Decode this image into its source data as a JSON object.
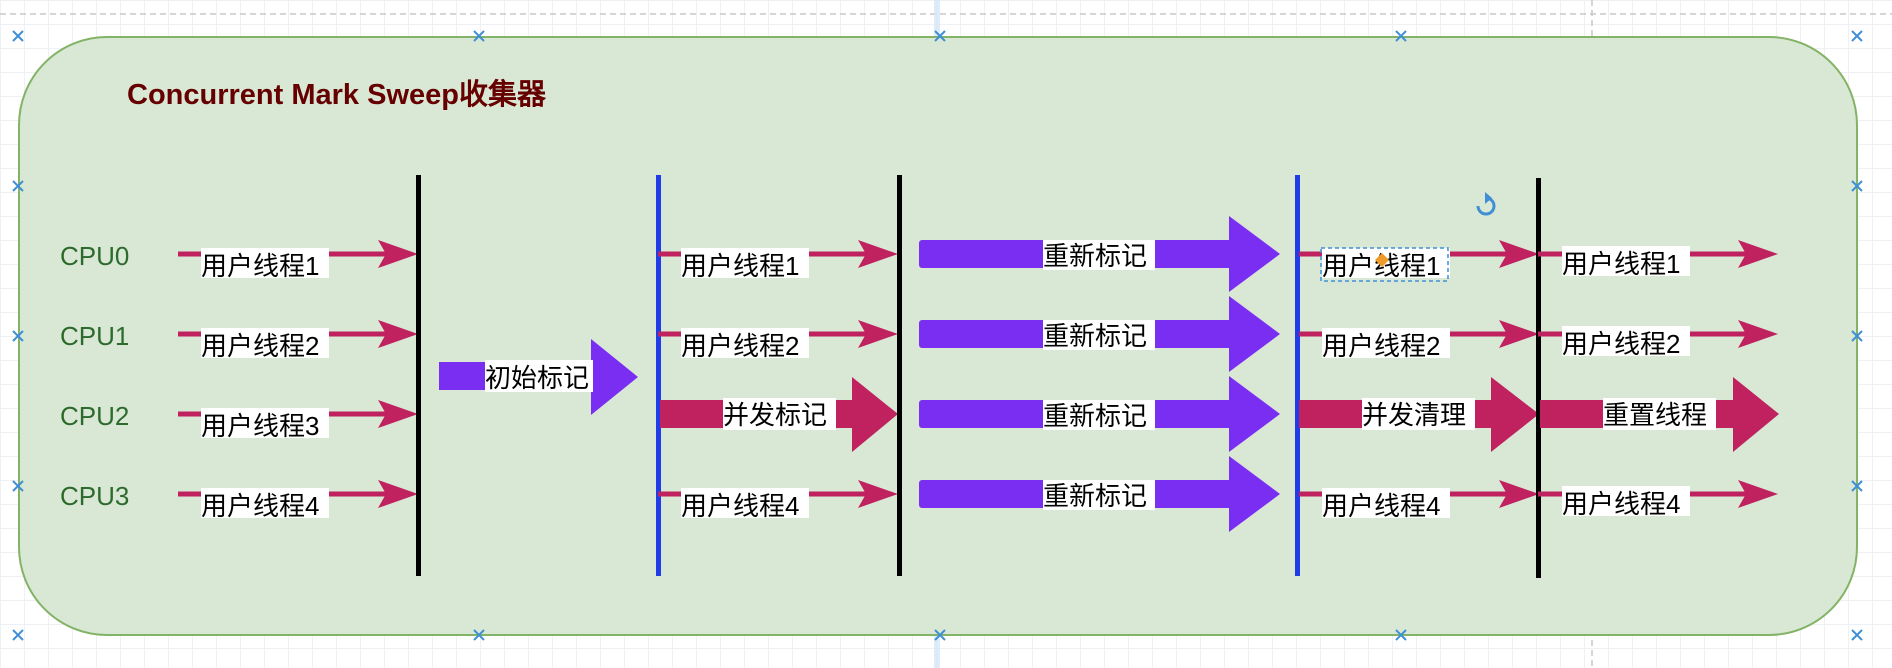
{
  "diagram": {
    "title": "Concurrent Mark Sweep收集器",
    "cpus": [
      "CPU0",
      "CPU1",
      "CPU2",
      "CPU3"
    ],
    "phase1": {
      "user_threads": [
        "用户线程1",
        "用户线程2",
        "用户线程3",
        "用户线程4"
      ]
    },
    "initial_mark": "初始标记",
    "phase2": {
      "thread1": "用户线程1",
      "thread2": "用户线程2",
      "concurrent_mark": "并发标记",
      "thread4": "用户线程4"
    },
    "remark": [
      "重新标记",
      "重新标记",
      "重新标记",
      "重新标记"
    ],
    "phase3": {
      "thread1": "用户线程1",
      "thread2": "用户线程2",
      "concurrent_sweep": "并发清理",
      "thread4": "用户线程4"
    },
    "phase4": {
      "thread1": "用户线程1",
      "thread2": "用户线程2",
      "reset_threads": "重置线程",
      "thread4": "用户线程4"
    }
  },
  "colors": {
    "container_fill": "#d9e8d5",
    "container_stroke": "#82b366",
    "title": "#660000",
    "cpu_label": "#2d6a2d",
    "thread_arrow": "#c0215f",
    "gc_arrow_purple": "#7a2ef2",
    "stw_bar": "#000000",
    "concurrent_bar": "#1f3ce8",
    "selection": "#3f8fd6",
    "handle": "#ef9b28"
  }
}
